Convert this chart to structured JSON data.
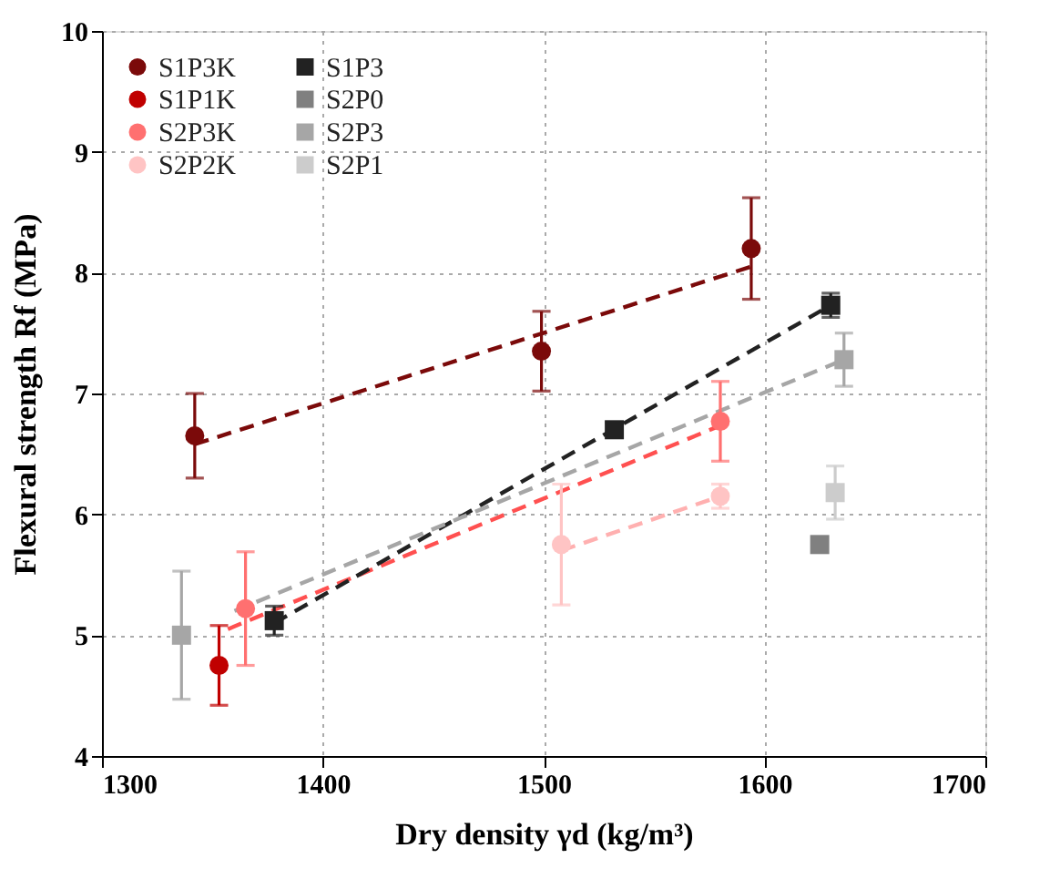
{
  "chart_data": {
    "type": "scatter",
    "xlabel": "Dry density γd (kg/m³)",
    "ylabel": "Flexural strength Rf (MPa)",
    "xlim": [
      1300,
      1700
    ],
    "xticks": [
      1300,
      1400,
      1500,
      1600,
      1700
    ],
    "ylim": [
      4,
      10
    ],
    "yticks": [
      4,
      5,
      6,
      7,
      8,
      9,
      10
    ],
    "grid": true,
    "legend": "top left",
    "series": [
      {
        "name": "S1P3K",
        "color": "#7b0a0a",
        "marker": "circle",
        "x": [
          1342,
          1499,
          1594
        ],
        "values": [
          6.65,
          7.35,
          8.2
        ],
        "errors": [
          0.35,
          0.33,
          0.42
        ]
      },
      {
        "name": "S1P1K",
        "color": "#c00000",
        "marker": "circle",
        "x": [
          1353
        ],
        "values": [
          4.75
        ],
        "errors": [
          0.33
        ]
      },
      {
        "name": "S2P3K",
        "color": "#ff7070",
        "marker": "circle",
        "x": [
          1365,
          1580
        ],
        "values": [
          5.22,
          6.77
        ],
        "errors": [
          0.47,
          0.33
        ]
      },
      {
        "name": "S2P2K",
        "color": "#ffc4c4",
        "marker": "circle",
        "x": [
          1508,
          1580
        ],
        "values": [
          5.75,
          6.15
        ],
        "errors": [
          0.5,
          0.1
        ]
      },
      {
        "name": "S1P3",
        "color": "#222222",
        "marker": "square",
        "x": [
          1378,
          1532,
          1630
        ],
        "values": [
          5.12,
          6.7,
          7.73
        ],
        "errors": [
          0.12,
          0.06,
          0.1
        ]
      },
      {
        "name": "S2P0",
        "color": "#808080",
        "marker": "square",
        "x": [
          1625
        ],
        "values": [
          5.75
        ],
        "errors": [
          null
        ]
      },
      {
        "name": "S2P3",
        "color": "#a6a6a6",
        "marker": "square",
        "x": [
          1336,
          1636
        ],
        "values": [
          5.0,
          7.28
        ],
        "errors": [
          0.53,
          0.22
        ]
      },
      {
        "name": "S2P1",
        "color": "#cccccc",
        "marker": "square",
        "x": [
          1632
        ],
        "values": [
          6.18
        ],
        "errors": [
          0.22
        ]
      },
      {
        "type": "line",
        "line_style": "dashed",
        "color": "#7b0a0a",
        "x": [
          1342,
          1594
        ],
        "values": [
          6.58,
          8.05
        ]
      },
      {
        "type": "line",
        "line_style": "dashed",
        "color": "#ff5050",
        "x": [
          1357,
          1578
        ],
        "values": [
          5.05,
          6.72
        ]
      },
      {
        "type": "line",
        "line_style": "dashed",
        "color": "#ffb0b0",
        "x": [
          1508,
          1580
        ],
        "values": [
          5.7,
          6.15
        ]
      },
      {
        "type": "line",
        "line_style": "dashed",
        "color": "#222222",
        "x": [
          1378,
          1630
        ],
        "values": [
          5.1,
          7.73
        ]
      },
      {
        "type": "line",
        "line_style": "dashed",
        "color": "#a6a6a6",
        "x": [
          1360,
          1636
        ],
        "values": [
          5.2,
          7.28
        ]
      }
    ]
  }
}
